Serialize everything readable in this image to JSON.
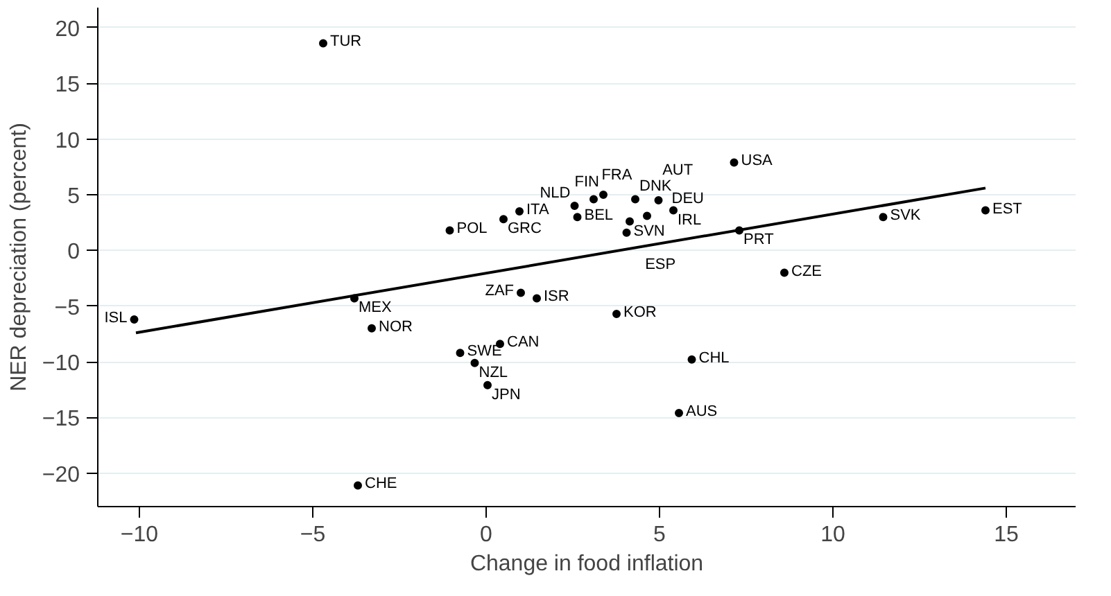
{
  "chart_data": {
    "type": "scatter",
    "xlabel": "Change in food inflation",
    "ylabel": "NER depreciation (percent)",
    "xlim": [
      -11.2,
      17
    ],
    "ylim": [
      -23,
      21.8
    ],
    "xticks": [
      -10,
      -5,
      0,
      5,
      10,
      15
    ],
    "yticks": [
      -20,
      -15,
      -10,
      -5,
      0,
      5,
      10,
      15,
      20
    ],
    "grid": "y",
    "series": [
      {
        "color": "#000000",
        "marker": "circle",
        "x": [
          -4.7,
          7.15,
          14.4,
          11.45,
          8.6,
          7.3,
          -1.05,
          -10.15,
          -3.8,
          -3.3,
          0.4,
          -0.75,
          -0.33,
          0.04,
          -3.7,
          1.0,
          1.46,
          3.76,
          5.93,
          5.56,
          4.05,
          0.96,
          0.5,
          2.55,
          2.63,
          3.1,
          3.38,
          4.3,
          4.97,
          4.14,
          4.64,
          5.4
        ],
        "values": [
          18.6,
          7.9,
          3.6,
          3.0,
          -2.0,
          1.8,
          1.8,
          -6.2,
          -4.3,
          -7.0,
          -8.4,
          -9.2,
          -10.1,
          -12.1,
          -21.1,
          -3.8,
          -4.3,
          -5.7,
          -9.8,
          -14.6,
          1.6,
          3.5,
          2.8,
          4.0,
          3.0,
          4.6,
          5.0,
          4.6,
          4.5,
          2.6,
          3.1,
          3.6
        ]
      },
      {
        "type": "line",
        "color": "#000000",
        "x": [
          -10.1,
          14.4
        ],
        "values": [
          -7.4,
          5.6
        ]
      }
    ],
    "annotations": [
      {
        "text": "TUR",
        "x": -4.7,
        "y": 18.6
      },
      {
        "text": "USA",
        "x": 7.15,
        "y": 7.9
      },
      {
        "text": "EST",
        "x": 14.4,
        "y": 3.6
      },
      {
        "text": "SVK",
        "x": 11.45,
        "y": 3.0
      },
      {
        "text": "CZE",
        "x": 8.6,
        "y": -2.0
      },
      {
        "text": "PRT",
        "x": 7.3,
        "y": 1.8
      },
      {
        "text": "POL",
        "x": -1.05,
        "y": 1.8
      },
      {
        "text": "ISL",
        "x": -10.15,
        "y": -6.2
      },
      {
        "text": "MEX",
        "x": -3.8,
        "y": -4.3
      },
      {
        "text": "NOR",
        "x": -3.3,
        "y": -7.0
      },
      {
        "text": "CAN",
        "x": 0.4,
        "y": -8.4
      },
      {
        "text": "SWE",
        "x": -0.75,
        "y": -9.2
      },
      {
        "text": "NZL",
        "x": -0.33,
        "y": -10.1
      },
      {
        "text": "JPN",
        "x": 0.04,
        "y": -12.1
      },
      {
        "text": "CHE",
        "x": -3.7,
        "y": -21.1
      },
      {
        "text": "ZAF",
        "x": 1.0,
        "y": -3.8
      },
      {
        "text": "ISR",
        "x": 1.46,
        "y": -4.3
      },
      {
        "text": "KOR",
        "x": 3.76,
        "y": -5.7
      },
      {
        "text": "CHL",
        "x": 5.93,
        "y": -9.8
      },
      {
        "text": "AUS",
        "x": 5.56,
        "y": -14.6
      },
      {
        "text": "SVN",
        "x": 4.05,
        "y": 1.6
      },
      {
        "text": "ITA",
        "x": 0.96,
        "y": 3.5
      },
      {
        "text": "GRC",
        "x": 0.5,
        "y": 2.8
      },
      {
        "text": "NLD",
        "x": 2.55,
        "y": 4.0
      },
      {
        "text": "BEL",
        "x": 2.63,
        "y": 3.0
      },
      {
        "text": "FRA",
        "x": 3.1,
        "y": 4.6
      },
      {
        "text": "FIN",
        "x": 3.38,
        "y": 5.0
      },
      {
        "text": "DNK",
        "x": 4.3,
        "y": 4.6
      },
      {
        "text": "DEU",
        "x": 4.97,
        "y": 4.5
      },
      {
        "text": "ESP",
        "x": 4.14,
        "y": 2.6
      },
      {
        "text": "AUT",
        "x": 4.64,
        "y": 3.1
      },
      {
        "text": "IRL",
        "x": 5.4,
        "y": 3.6
      }
    ]
  }
}
